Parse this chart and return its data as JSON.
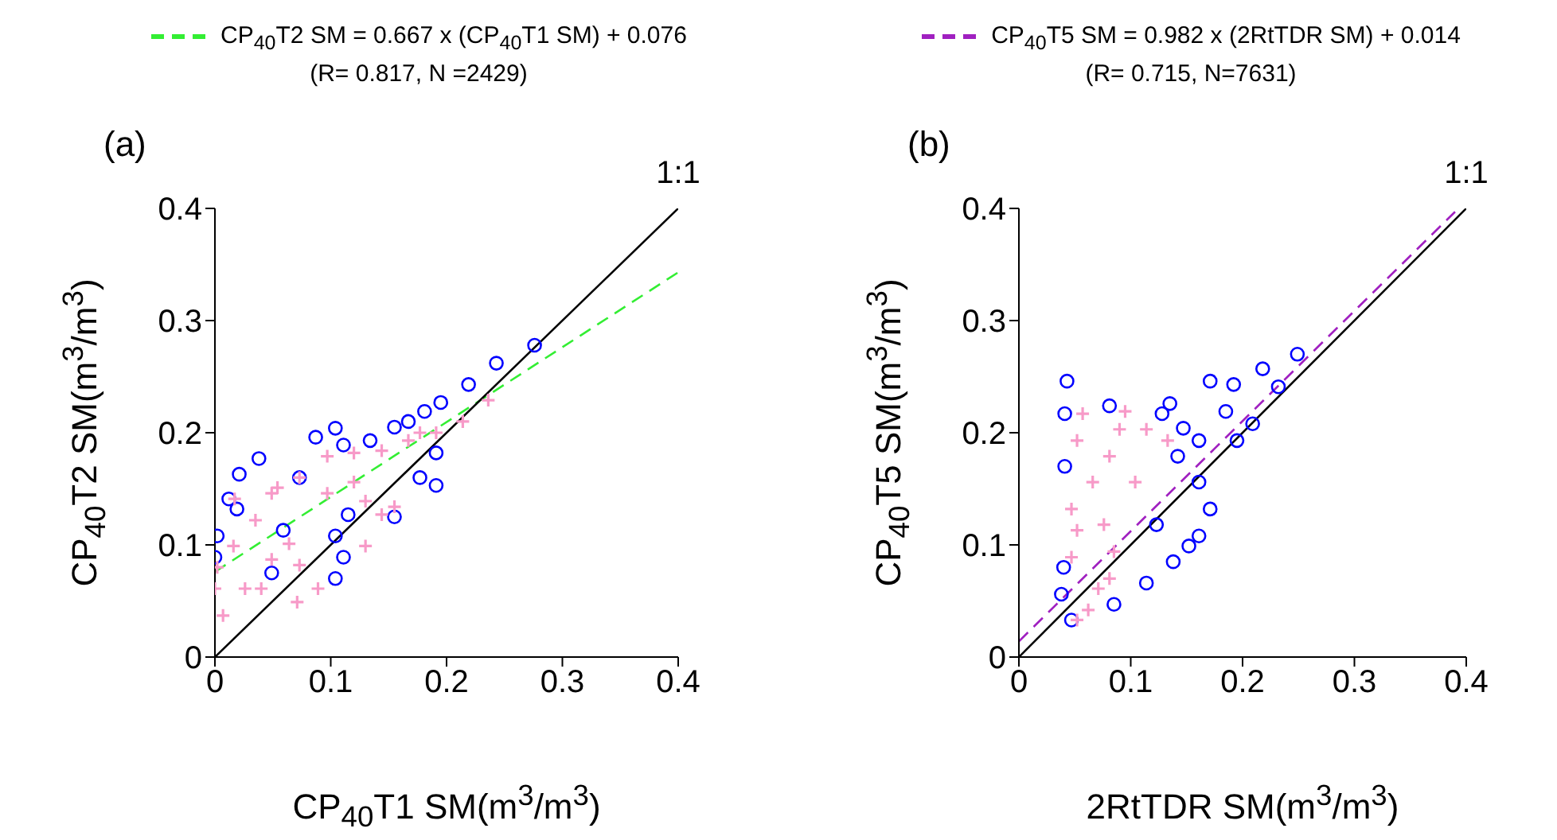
{
  "chart_data": [
    {
      "type": "scatter",
      "xlabel": "CP$_{40}$T1 SM(m$^{3}$/m$^{3}$)",
      "ylabel": "CP$_{40}$T2 SM(m$^{3}$/m$^{3}$)",
      "xlim": [
        0,
        0.4
      ],
      "ylim": [
        0,
        0.4
      ],
      "xticks": [
        0,
        0.1,
        0.2,
        0.3,
        0.4
      ],
      "yticks": [
        0,
        0.1,
        0.2,
        0.3,
        0.4
      ],
      "grid": false,
      "legend": "top",
      "annotations": [
        "(R= 0.817, N =2429)",
        "(a)",
        {
          "text": "1:1",
          "x": 0.4,
          "y": 0.4
        }
      ],
      "series": [
        {
          "marker": "circle",
          "color": "#0000ff",
          "x": [
            0.276,
            0.243,
            0.219,
            0.195,
            0.181,
            0.167,
            0.155,
            0.134,
            0.104,
            0.087,
            0.111,
            0.038,
            0.021,
            0.012,
            0.002,
            0.0,
            0.191,
            0.177,
            0.191,
            0.155,
            0.115,
            0.104,
            0.111,
            0.104,
            0.049,
            0.059,
            0.073,
            0.019
          ],
          "values": [
            0.278,
            0.262,
            0.243,
            0.227,
            0.219,
            0.21,
            0.205,
            0.193,
            0.204,
            0.196,
            0.189,
            0.177,
            0.163,
            0.141,
            0.108,
            0.089,
            0.153,
            0.16,
            0.182,
            0.125,
            0.127,
            0.108,
            0.089,
            0.07,
            0.075,
            0.113,
            0.16,
            0.132
          ]
        },
        {
          "marker": "cross",
          "color": "#f79ac8",
          "x": [
            0.0,
            0.007,
            0.002,
            0.016,
            0.035,
            0.054,
            0.073,
            0.097,
            0.12,
            0.144,
            0.167,
            0.191,
            0.214,
            0.236,
            0.064,
            0.049,
            0.073,
            0.089,
            0.071,
            0.04,
            0.13,
            0.144,
            0.13,
            0.155,
            0.026,
            0.017,
            0.049,
            0.097,
            0.12,
            0.177
          ],
          "values": [
            0.061,
            0.037,
            0.08,
            0.099,
            0.122,
            0.151,
            0.16,
            0.179,
            0.182,
            0.184,
            0.193,
            0.2,
            0.21,
            0.229,
            0.101,
            0.087,
            0.082,
            0.061,
            0.049,
            0.061,
            0.139,
            0.127,
            0.099,
            0.134,
            0.061,
            0.141,
            0.146,
            0.146,
            0.156,
            0.2
          ]
        },
        {
          "type": "line",
          "name": "CP$_{40}$T2 SM = 0.667 x (CP$_{40}$T1 SM) + 0.076",
          "color": "#33ee33",
          "line_style": "dashed",
          "x": [
            0,
            0.4
          ],
          "values": [
            0.076,
            0.343
          ]
        },
        {
          "type": "line",
          "color": "#000000",
          "line_style": "solid",
          "x": [
            0,
            0.4
          ],
          "values": [
            0,
            0.4
          ]
        }
      ]
    },
    {
      "type": "scatter",
      "xlabel": "2RtTDR SM(m$^{3}$/m$^{3}$)",
      "ylabel": "CP$_{40}$T5 SM(m$^{3}$/m$^{3}$)",
      "xlim": [
        0,
        0.4
      ],
      "ylim": [
        0,
        0.4
      ],
      "xticks": [
        0,
        0.1,
        0.2,
        0.3,
        0.4
      ],
      "yticks": [
        0,
        0.1,
        0.2,
        0.3,
        0.4
      ],
      "grid": false,
      "legend": "top",
      "annotations": [
        "(R= 0.715, N=7631)",
        "(b)",
        {
          "text": "1:1",
          "x": 0.4,
          "y": 0.4
        }
      ],
      "series": [
        {
          "marker": "circle",
          "color": "#0000ff",
          "x": [
            0.043,
            0.041,
            0.041,
            0.04,
            0.081,
            0.135,
            0.147,
            0.171,
            0.249,
            0.218,
            0.185,
            0.161,
            0.161,
            0.161,
            0.138,
            0.114,
            0.085,
            0.047,
            0.038,
            0.128,
            0.142,
            0.171,
            0.209,
            0.232,
            0.195,
            0.152,
            0.123,
            0.192
          ],
          "values": [
            0.246,
            0.217,
            0.17,
            0.08,
            0.224,
            0.226,
            0.204,
            0.246,
            0.27,
            0.257,
            0.219,
            0.193,
            0.156,
            0.108,
            0.085,
            0.066,
            0.047,
            0.033,
            0.056,
            0.217,
            0.179,
            0.132,
            0.208,
            0.241,
            0.193,
            0.099,
            0.118,
            0.243
          ]
        },
        {
          "marker": "cross",
          "color": "#f79ac8",
          "x": [
            0.057,
            0.095,
            0.133,
            0.052,
            0.066,
            0.104,
            0.047,
            0.052,
            0.047,
            0.076,
            0.085,
            0.081,
            0.062,
            0.052,
            0.09,
            0.114,
            0.081,
            0.071
          ],
          "values": [
            0.217,
            0.219,
            0.193,
            0.193,
            0.156,
            0.156,
            0.132,
            0.113,
            0.089,
            0.118,
            0.094,
            0.07,
            0.042,
            0.033,
            0.203,
            0.203,
            0.179,
            0.061
          ]
        },
        {
          "type": "line",
          "name": "CP$_{40}$T5 SM = 0.982 x (2RtTDR SM) + 0.014",
          "color": "#a020c0",
          "line_style": "dashed",
          "x": [
            0,
            0.39
          ],
          "values": [
            0.014,
            0.397
          ]
        },
        {
          "type": "line",
          "color": "#000000",
          "line_style": "solid",
          "x": [
            0,
            0.4
          ],
          "values": [
            0,
            0.4
          ]
        }
      ]
    }
  ]
}
